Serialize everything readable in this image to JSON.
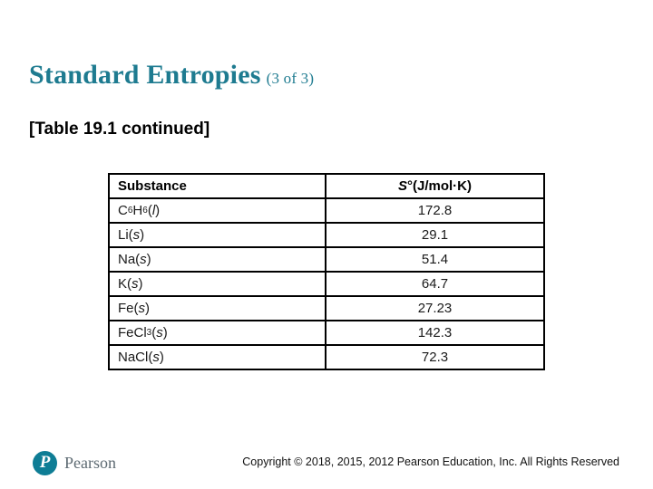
{
  "slide": {
    "title": "Standard Entropies",
    "title_suffix": "(3 of 3)",
    "subtitle": "[Table 19.1 continued]",
    "accent_color": "#1e7b90"
  },
  "table": {
    "header": {
      "substance_label": "Substance",
      "entropy_segments": [
        {
          "t": "S",
          "s": "i"
        },
        {
          "t": "°"
        },
        {
          "t": "(J/mol·K)"
        }
      ]
    },
    "rows": [
      {
        "substance_text": "C6H6(l)",
        "substance_segments": [
          {
            "t": "C"
          },
          {
            "t": "6",
            "s": "sub"
          },
          {
            "t": "H"
          },
          {
            "t": "6",
            "s": "sub"
          },
          {
            "t": " ("
          },
          {
            "t": "l",
            "s": "i"
          },
          {
            "t": ")"
          }
        ],
        "value": "172.8"
      },
      {
        "substance_text": "Li(s)",
        "substance_segments": [
          {
            "t": "Li("
          },
          {
            "t": "s",
            "s": "i"
          },
          {
            "t": ")"
          }
        ],
        "value": "29.1"
      },
      {
        "substance_text": "Na(s)",
        "substance_segments": [
          {
            "t": "Na("
          },
          {
            "t": "s",
            "s": "i"
          },
          {
            "t": ")"
          }
        ],
        "value": "51.4"
      },
      {
        "substance_text": "K(s)",
        "substance_segments": [
          {
            "t": "K("
          },
          {
            "t": "s",
            "s": "i"
          },
          {
            "t": ")"
          }
        ],
        "value": "64.7"
      },
      {
        "substance_text": "Fe(s)",
        "substance_segments": [
          {
            "t": "Fe("
          },
          {
            "t": "s",
            "s": "i"
          },
          {
            "t": ")"
          }
        ],
        "value": "27.23"
      },
      {
        "substance_text": "FeCl3(s)",
        "substance_segments": [
          {
            "t": "FeCl"
          },
          {
            "t": "3",
            "s": "sub"
          },
          {
            "t": " ("
          },
          {
            "t": "s",
            "s": "i"
          },
          {
            "t": ")"
          }
        ],
        "value": "142.3"
      },
      {
        "substance_text": "NaCl(s)",
        "substance_segments": [
          {
            "t": "NaCl("
          },
          {
            "t": "s",
            "s": "i"
          },
          {
            "t": ")"
          }
        ],
        "value": "72.3"
      }
    ]
  },
  "footer": {
    "brand": "Pearson",
    "logo_letter": "P",
    "logo_color": "#0e7d95",
    "copyright": "Copyright © 2018, 2015, 2012 Pearson Education, Inc. All Rights Reserved"
  }
}
